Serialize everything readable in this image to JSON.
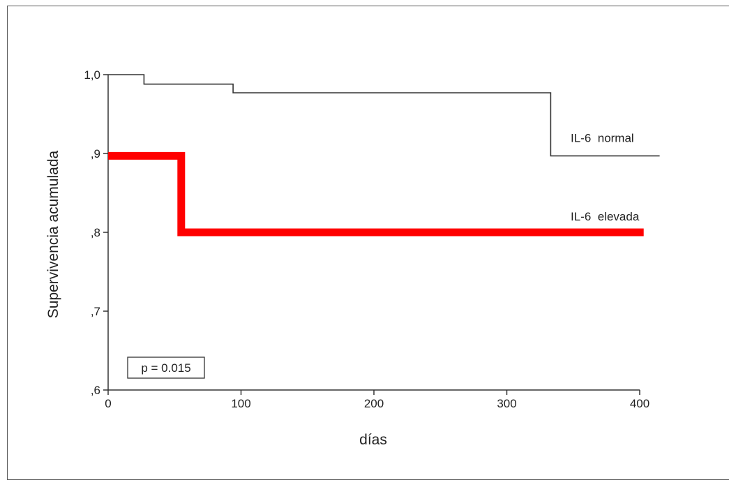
{
  "chart_data": {
    "type": "line",
    "step": true,
    "ylabel": "Supervivencia    acumulada",
    "xlabel": "días",
    "xlim": [
      0,
      400
    ],
    "ylim": [
      0.6,
      1.0
    ],
    "xticks": [
      0,
      100,
      200,
      300,
      400
    ],
    "xtick_labels": [
      "0",
      "100",
      "200",
      "300",
      "400"
    ],
    "yticks": [
      0.6,
      0.7,
      0.8,
      0.9,
      1.0
    ],
    "ytick_labels": [
      ",6",
      ",7",
      ",8",
      ",9",
      "1,0"
    ],
    "grid": false,
    "annotation": "p = 0.015",
    "series": [
      {
        "name": "IL-6  normal",
        "color": "#333333",
        "points": [
          [
            0,
            1.0
          ],
          [
            27,
            1.0
          ],
          [
            27,
            0.988
          ],
          [
            94,
            0.988
          ],
          [
            94,
            0.977
          ],
          [
            333,
            0.977
          ],
          [
            333,
            0.897
          ],
          [
            415,
            0.897
          ]
        ]
      },
      {
        "name": "IL-6  elevada",
        "color": "#ff0000",
        "points": [
          [
            0,
            0.897
          ],
          [
            55,
            0.897
          ],
          [
            55,
            0.8
          ],
          [
            403,
            0.8
          ]
        ]
      }
    ]
  }
}
